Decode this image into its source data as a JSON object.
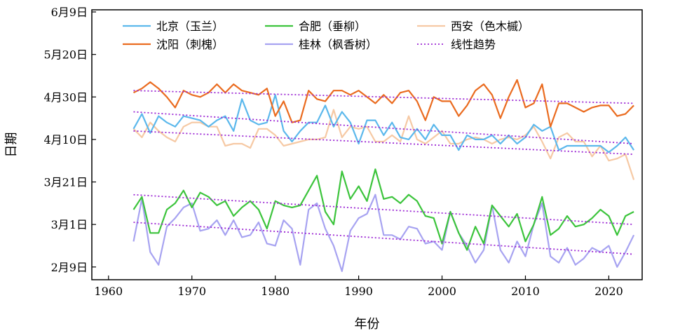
{
  "chart_data": {
    "type": "line",
    "title": "",
    "xlabel": "年份",
    "ylabel": "日期",
    "xlim": [
      1958,
      2024
    ],
    "ylim": [
      34,
      161
    ],
    "x_ticks": [
      1960,
      1970,
      1980,
      1990,
      2000,
      2010,
      2020
    ],
    "y_ticks": [
      {
        "value": 40,
        "label": "2月9日"
      },
      {
        "value": 60,
        "label": "3月1日"
      },
      {
        "value": 80,
        "label": "3月21日"
      },
      {
        "value": 100,
        "label": "4月10日"
      },
      {
        "value": 120,
        "label": "4月30日"
      },
      {
        "value": 140,
        "label": "5月20日"
      },
      {
        "value": 160,
        "label": "6月9日"
      }
    ],
    "y_axis_units": "day of year",
    "grid": false,
    "legend_position": "top",
    "x": [
      1963,
      1964,
      1965,
      1966,
      1967,
      1968,
      1969,
      1970,
      1971,
      1972,
      1973,
      1974,
      1975,
      1976,
      1977,
      1978,
      1979,
      1980,
      1981,
      1982,
      1983,
      1984,
      1985,
      1986,
      1987,
      1988,
      1989,
      1990,
      1991,
      1992,
      1993,
      1994,
      1995,
      1996,
      1997,
      1998,
      1999,
      2000,
      2001,
      2002,
      2003,
      2004,
      2005,
      2006,
      2007,
      2008,
      2009,
      2010,
      2011,
      2012,
      2013,
      2014,
      2015,
      2016,
      2017,
      2018,
      2019,
      2020,
      2021,
      2022,
      2023
    ],
    "series": [
      {
        "name": "北京（玉兰）",
        "color": "#5bb8ec",
        "values": [
          105,
          112,
          103,
          111,
          108,
          106,
          111,
          110,
          109,
          106,
          109,
          111,
          104,
          119,
          109,
          107,
          108,
          121,
          104,
          99,
          104,
          108,
          108,
          116,
          106,
          113,
          108,
          98,
          109,
          109,
          102,
          108,
          101,
          100,
          105,
          100,
          107,
          102,
          102,
          95,
          102,
          100,
          100,
          102,
          98,
          102,
          98,
          101,
          107,
          104,
          106,
          95,
          97,
          97,
          97,
          97,
          97,
          94,
          97,
          101,
          95
        ]
      },
      {
        "name": "合肥（垂柳）",
        "color": "#3cc43c",
        "values": [
          67,
          73,
          56,
          56,
          67,
          70,
          76,
          68,
          75,
          73,
          69,
          71,
          64,
          68,
          71,
          67,
          58,
          71,
          69,
          68,
          69,
          76,
          83,
          66,
          60,
          85,
          72,
          78,
          71,
          86,
          72,
          73,
          70,
          74,
          71,
          64,
          63,
          51,
          66,
          56,
          48,
          59,
          51,
          69,
          64,
          59,
          65,
          52,
          60,
          73,
          55,
          58,
          64,
          59,
          60,
          63,
          67,
          64,
          55,
          64,
          66
        ]
      },
      {
        "name": "西安（色木槭）",
        "color": "#f6c9a4",
        "values": [
          105,
          101,
          108,
          104,
          101,
          99,
          106,
          108,
          108,
          106,
          106,
          97,
          98,
          98,
          96,
          105,
          105,
          102,
          97,
          98,
          99,
          100,
          100,
          101,
          114,
          101,
          106,
          105,
          106,
          99,
          99,
          102,
          99,
          111,
          100,
          98,
          101,
          104,
          98,
          98,
          100,
          101,
          100,
          98,
          100,
          101,
          100,
          102,
          106,
          99,
          91,
          101,
          103,
          99,
          99,
          92,
          97,
          90,
          91,
          93,
          81
        ]
      },
      {
        "name": "沈阳（刺槐）",
        "color": "#ea6b1f",
        "values": [
          122,
          124,
          127,
          124,
          120,
          115,
          123,
          121,
          120,
          122,
          126,
          122,
          126,
          123,
          122,
          121,
          124,
          111,
          118,
          108,
          109,
          123,
          119,
          118,
          123,
          123,
          121,
          123,
          120,
          117,
          121,
          117,
          122,
          123,
          118,
          109,
          120,
          118,
          118,
          111,
          116,
          123,
          126,
          121,
          110,
          120,
          128,
          115,
          117,
          126,
          106,
          117,
          117,
          115,
          113,
          115,
          116,
          116,
          111,
          112,
          116
        ]
      },
      {
        "name": "桂林（枫香树）",
        "color": "#a7a3f1",
        "values": [
          52,
          72,
          47,
          41,
          59,
          63,
          68,
          70,
          57,
          58,
          62,
          55,
          62,
          54,
          55,
          61,
          51,
          50,
          62,
          58,
          41,
          67,
          70,
          58,
          50,
          38,
          57,
          63,
          65,
          74,
          55,
          55,
          53,
          59,
          58,
          51,
          52,
          48,
          66,
          56,
          50,
          42,
          48,
          69,
          48,
          42,
          52,
          45,
          60,
          70,
          45,
          42,
          49,
          41,
          44,
          49,
          47,
          50,
          40,
          47,
          55
        ]
      },
      {
        "name": "线性趋势",
        "color": "#9c27d4",
        "style": "dotted",
        "trend_lines": [
          {
            "from_year": 1963,
            "to_year": 2023,
            "start": 123,
            "end": 117
          },
          {
            "from_year": 1963,
            "to_year": 2023,
            "start": 113,
            "end": 98
          },
          {
            "from_year": 1963,
            "to_year": 2023,
            "start": 104,
            "end": 93
          },
          {
            "from_year": 1963,
            "to_year": 2023,
            "start": 74,
            "end": 60
          },
          {
            "from_year": 1963,
            "to_year": 2023,
            "start": 61,
            "end": 46
          }
        ]
      }
    ]
  }
}
